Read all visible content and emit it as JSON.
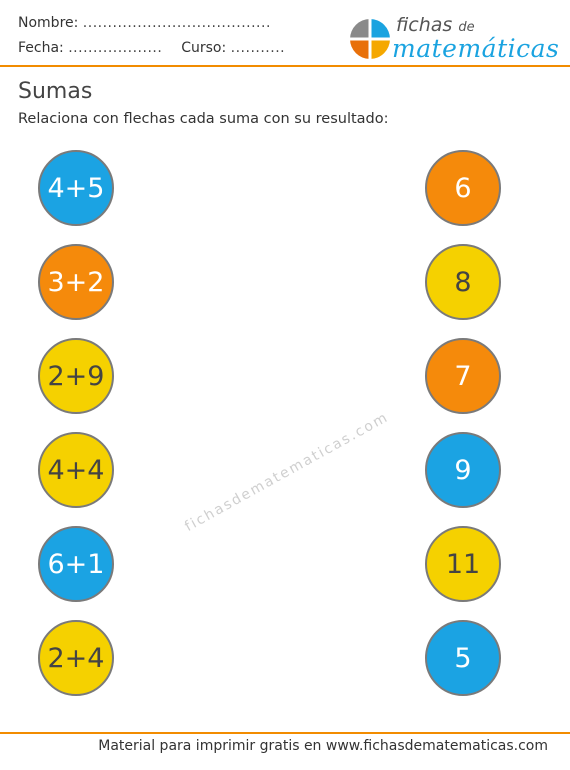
{
  "header": {
    "nombre_label": "Nombre:",
    "nombre_dots": "......................................",
    "fecha_label": "Fecha:",
    "fecha_dots": "...................",
    "curso_label": "Curso:",
    "curso_dots": "..........."
  },
  "logo": {
    "word1": "fichas",
    "word_de": "de",
    "word2": "matemáticas",
    "colors": [
      "#1aa3e0",
      "#f5a800",
      "#e8700a",
      "#8a8a8a"
    ]
  },
  "title": "Sumas",
  "instructions": "Relaciona con flechas cada suma con su resultado:",
  "sums": [
    {
      "text": "4+5",
      "color": "#1ba3e3",
      "text_color": "#ffffff"
    },
    {
      "text": "3+2",
      "color": "#f58a0b",
      "text_color": "#ffffff"
    },
    {
      "text": "2+9",
      "color": "#f5d100",
      "text_color": "#444444"
    },
    {
      "text": "4+4",
      "color": "#f5d100",
      "text_color": "#444444"
    },
    {
      "text": "6+1",
      "color": "#1ba3e3",
      "text_color": "#ffffff"
    },
    {
      "text": "2+4",
      "color": "#f5d100",
      "text_color": "#444444"
    }
  ],
  "results": [
    {
      "text": "6",
      "color": "#f58a0b",
      "text_color": "#ffffff"
    },
    {
      "text": "8",
      "color": "#f5d100",
      "text_color": "#444444"
    },
    {
      "text": "7",
      "color": "#f58a0b",
      "text_color": "#ffffff"
    },
    {
      "text": "9",
      "color": "#1ba3e3",
      "text_color": "#ffffff"
    },
    {
      "text": "11",
      "color": "#f5d100",
      "text_color": "#444444"
    },
    {
      "text": "5",
      "color": "#1ba3e3",
      "text_color": "#ffffff"
    }
  ],
  "watermark": "fichasdematematicas.com",
  "footer": "Material para imprimir gratis en www.fichasdematematicas.com"
}
